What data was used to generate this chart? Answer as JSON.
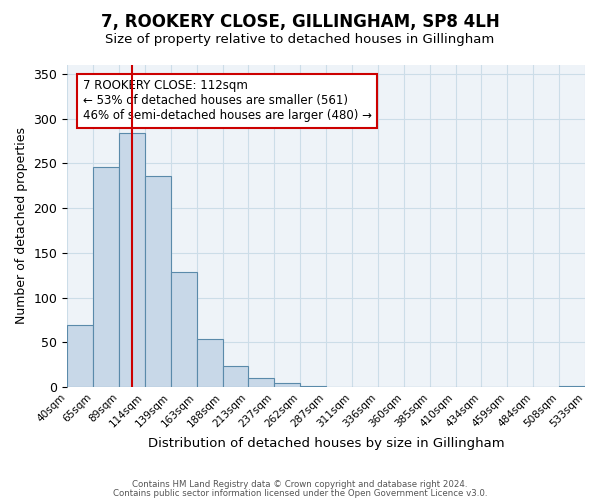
{
  "title": "7, ROOKERY CLOSE, GILLINGHAM, SP8 4LH",
  "subtitle": "Size of property relative to detached houses in Gillingham",
  "xlabel": "Distribution of detached houses by size in Gillingham",
  "ylabel": "Number of detached properties",
  "bar_values": [
    69,
    246,
    284,
    236,
    129,
    54,
    23,
    10,
    4,
    1,
    0,
    0,
    0,
    0,
    0,
    0,
    0,
    0,
    0,
    1
  ],
  "tick_labels": [
    "40sqm",
    "65sqm",
    "89sqm",
    "114sqm",
    "139sqm",
    "163sqm",
    "188sqm",
    "213sqm",
    "237sqm",
    "262sqm",
    "287sqm",
    "311sqm",
    "336sqm",
    "360sqm",
    "385sqm",
    "410sqm",
    "434sqm",
    "459sqm",
    "484sqm",
    "508sqm",
    "533sqm"
  ],
  "bar_color": "#c8d8e8",
  "bar_edge_color": "#5a8aaa",
  "bar_edge_width": 0.8,
  "vline_x": 2.5,
  "vline_color": "#cc0000",
  "vline_linewidth": 1.5,
  "annotation_text": "7 ROOKERY CLOSE: 112sqm\n← 53% of detached houses are smaller (561)\n46% of semi-detached houses are larger (480) →",
  "annotation_box_color": "#ffffff",
  "annotation_box_edge": "#cc0000",
  "ylim": [
    0,
    360
  ],
  "yticks": [
    0,
    50,
    100,
    150,
    200,
    250,
    300,
    350
  ],
  "grid_color": "#ccdde8",
  "footer_line1": "Contains HM Land Registry data © Crown copyright and database right 2024.",
  "footer_line2": "Contains public sector information licensed under the Open Government Licence v3.0.",
  "bg_color": "#eef3f8"
}
